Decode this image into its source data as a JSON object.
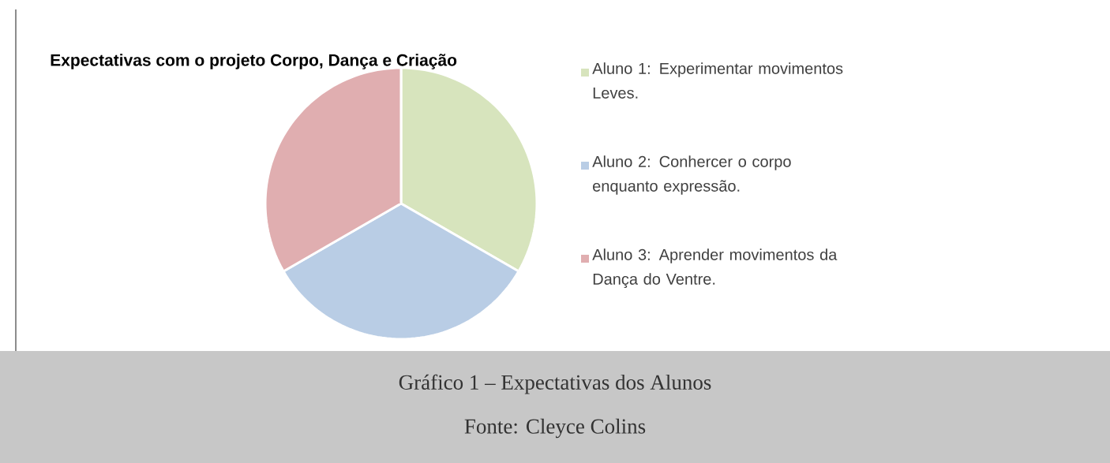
{
  "chart_data": {
    "type": "pie",
    "title": "Expectativas com o projeto Corpo, Dança e Criação",
    "categories": [
      "Aluno 1: Experimentar movimentos Leves.",
      "Aluno 2: Conhercer o corpo enquanto expressão.",
      "Aluno 3:  Aprender movimentos da Dança do Ventre."
    ],
    "values": [
      33.33,
      33.33,
      33.34
    ],
    "colors": [
      "#d7e4bd",
      "#b9cde5",
      "#e0aeb0"
    ],
    "legend": "right",
    "annotations": [
      "Gráfico 1 – Expectativas dos Alunos",
      "Fonte: Cleyce Colins"
    ]
  }
}
